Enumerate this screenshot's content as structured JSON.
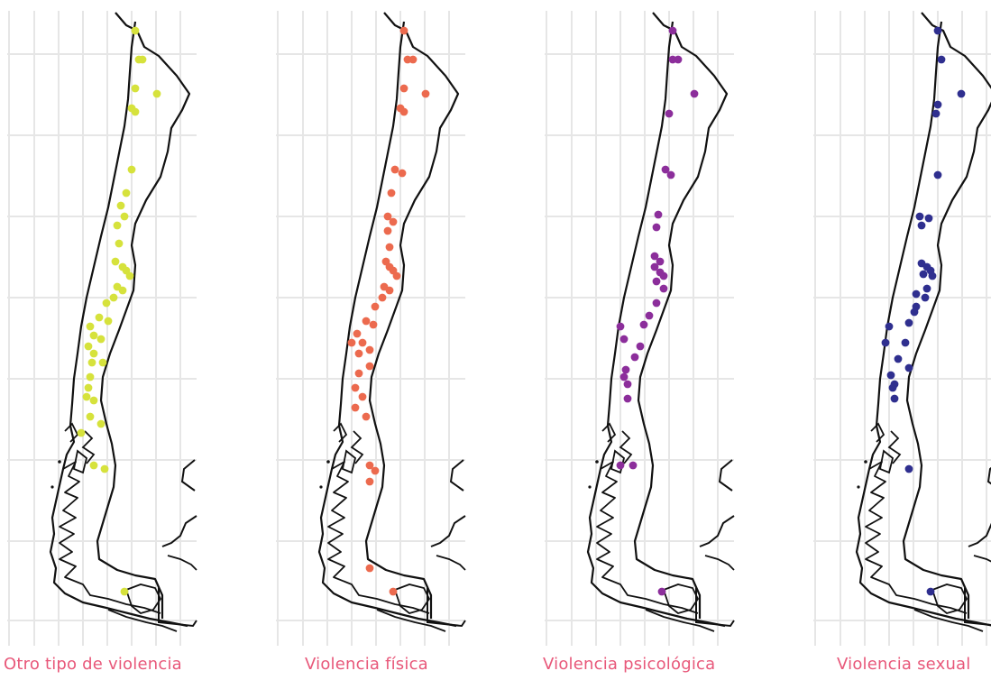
{
  "panels": [
    {
      "id": "otro",
      "label": "Otro tipo de violencia",
      "color": "#d6e23c"
    },
    {
      "id": "fisica",
      "label": "Violencia física",
      "color": "#ec6a4e"
    },
    {
      "id": "psicologica",
      "label": "Violencia psicológica",
      "color": "#8c2e9b"
    },
    {
      "id": "sexual",
      "label": "Violencia sexual",
      "color": "#2f2f8f"
    }
  ],
  "map": {
    "gridline_color": "#e6e6e6",
    "outline_color": "#111111"
  }
}
